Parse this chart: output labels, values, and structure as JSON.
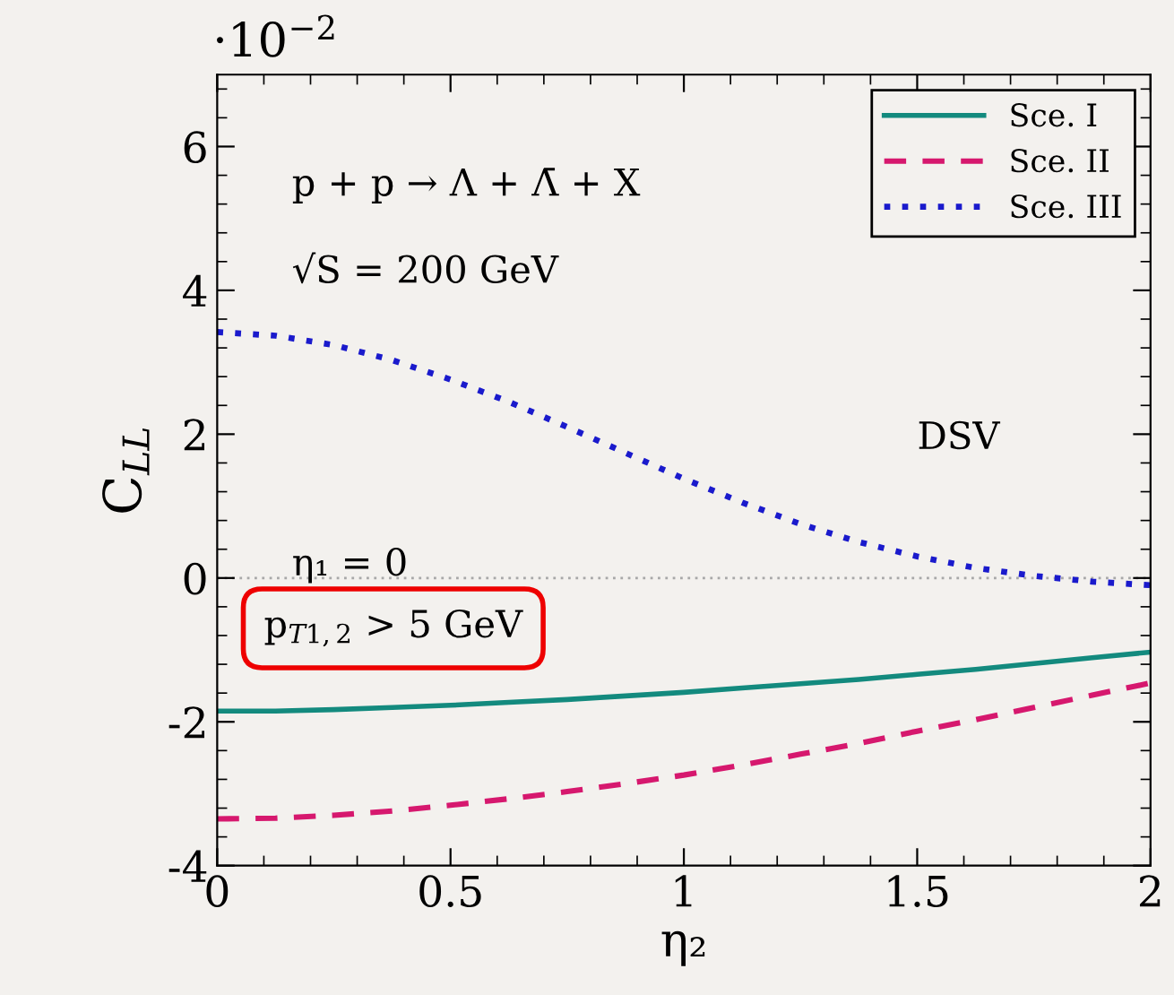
{
  "chart_data": {
    "type": "line",
    "xlabel": "η₂",
    "ylabel": "C$_{LL}$",
    "x": [
      0,
      0.125,
      0.25,
      0.375,
      0.5,
      0.625,
      0.75,
      0.875,
      1,
      1.125,
      1.25,
      1.375,
      1.5,
      1.625,
      1.75,
      1.875,
      2
    ],
    "series": [
      {
        "name": "Sce. I",
        "color": "#138a7e",
        "line_style": "solid",
        "values": [
          -1.85,
          -1.85,
          -1.83,
          -1.8,
          -1.77,
          -1.73,
          -1.69,
          -1.64,
          -1.59,
          -1.53,
          -1.47,
          -1.41,
          -1.34,
          -1.27,
          -1.19,
          -1.11,
          -1.03
        ]
      },
      {
        "name": "Sce. II",
        "color": "#d6186e",
        "line_style": "dashed",
        "values": [
          -3.35,
          -3.34,
          -3.3,
          -3.24,
          -3.16,
          -3.07,
          -2.97,
          -2.86,
          -2.74,
          -2.6,
          -2.45,
          -2.3,
          -2.13,
          -1.97,
          -1.8,
          -1.63,
          -1.46
        ]
      },
      {
        "name": "Sce. III",
        "color": "#1a1acc",
        "line_style": "dotted",
        "values": [
          3.42,
          3.37,
          3.24,
          3.03,
          2.76,
          2.45,
          2.1,
          1.74,
          1.38,
          1.05,
          0.75,
          0.5,
          0.3,
          0.14,
          0.03,
          -0.05,
          -0.1
        ]
      }
    ],
    "xlim": [
      0,
      2
    ],
    "xticks": [
      0,
      0.5,
      1,
      1.5,
      2
    ],
    "ylim": [
      -4,
      7
    ],
    "yticks": [
      -4,
      -2,
      0,
      2,
      4,
      6
    ],
    "ref_lines": [
      {
        "axis": "y",
        "value": 0,
        "color": "#a8a8a8",
        "line_style": "dotted"
      }
    ],
    "annotations": [
      "·10$^{−2}$",
      "p + p → Λ + Λ̄ + X",
      "√S = 200 GeV",
      "DSV",
      "η₁ = 0",
      "p$_{T1,2}$ > 5 GeV"
    ],
    "legend": "top right",
    "grid": false
  }
}
